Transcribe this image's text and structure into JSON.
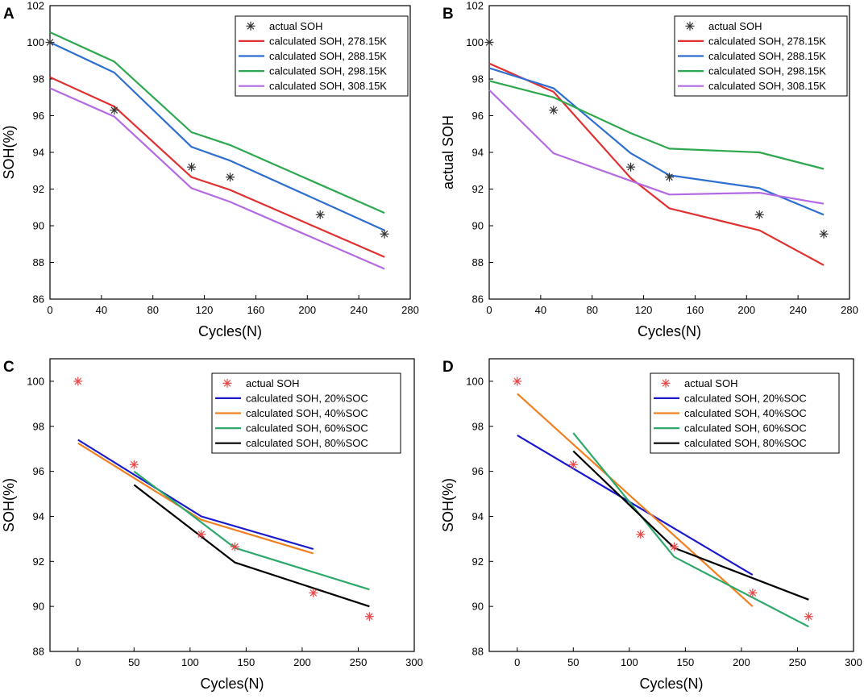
{
  "chart_data": [
    {
      "panel": "A",
      "type": "line",
      "xlabel": "Cycles(N)",
      "ylabel": "SOH(%)",
      "xlim": [
        0,
        280
      ],
      "ylim": [
        86,
        102
      ],
      "xticks": [
        0,
        40,
        80,
        120,
        160,
        200,
        240,
        280
      ],
      "yticks": [
        86,
        88,
        90,
        92,
        94,
        96,
        98,
        100,
        102
      ],
      "legend": "top-right",
      "actual": {
        "name": "actual SOH",
        "color": "#333333",
        "x": [
          0,
          50,
          110,
          140,
          210,
          260
        ],
        "y": [
          100,
          96.3,
          93.2,
          92.65,
          90.6,
          89.55
        ]
      },
      "series": [
        {
          "name": "calculated SOH, 278.15K",
          "color": "#e03030",
          "x": [
            0,
            50,
            110,
            140,
            260
          ],
          "y": [
            98.1,
            96.5,
            92.65,
            91.95,
            88.3
          ]
        },
        {
          "name": "calculated SOH, 288.15K",
          "color": "#2f6fcf",
          "x": [
            0,
            50,
            110,
            140,
            260
          ],
          "y": [
            100.0,
            98.35,
            94.3,
            93.55,
            89.75
          ]
        },
        {
          "name": "calculated SOH, 298.15K",
          "color": "#2ea84f",
          "x": [
            0,
            50,
            110,
            140,
            260
          ],
          "y": [
            100.55,
            98.95,
            95.1,
            94.4,
            90.7
          ]
        },
        {
          "name": "calculated SOH, 308.15K",
          "color": "#b36ae2",
          "x": [
            0,
            50,
            110,
            140,
            260
          ],
          "y": [
            97.5,
            95.95,
            92.05,
            91.3,
            87.65
          ]
        }
      ]
    },
    {
      "panel": "B",
      "type": "line",
      "xlabel": "Cycles(N)",
      "ylabel": "actual SOH",
      "xlim": [
        0,
        280
      ],
      "ylim": [
        86,
        102
      ],
      "xticks": [
        0,
        40,
        80,
        120,
        160,
        200,
        240,
        280
      ],
      "yticks": [
        86,
        88,
        90,
        92,
        94,
        96,
        98,
        100,
        102
      ],
      "legend": "top-right",
      "actual": {
        "name": "actual SOH",
        "color": "#333333",
        "x": [
          0,
          50,
          110,
          140,
          210,
          260
        ],
        "y": [
          100,
          96.3,
          93.2,
          92.65,
          90.6,
          89.55
        ]
      },
      "series": [
        {
          "name": "calculated SOH, 278.15K",
          "color": "#e03030",
          "x": [
            0,
            50,
            110,
            140,
            210,
            260
          ],
          "y": [
            98.85,
            97.3,
            92.6,
            90.95,
            89.75,
            87.85
          ]
        },
        {
          "name": "calculated SOH, 288.15K",
          "color": "#2f6fcf",
          "x": [
            0,
            50,
            110,
            140,
            210,
            260
          ],
          "y": [
            98.6,
            97.5,
            93.95,
            92.75,
            92.05,
            90.6
          ]
        },
        {
          "name": "calculated SOH, 298.15K",
          "color": "#2ea84f",
          "x": [
            0,
            50,
            110,
            140,
            210,
            260
          ],
          "y": [
            97.9,
            97.0,
            95.05,
            94.2,
            94.0,
            93.1
          ]
        },
        {
          "name": "calculated SOH, 308.15K",
          "color": "#b36ae2",
          "x": [
            0,
            50,
            110,
            140,
            210,
            260
          ],
          "y": [
            97.4,
            93.95,
            92.45,
            91.7,
            91.8,
            91.2
          ]
        }
      ]
    },
    {
      "panel": "C",
      "type": "line",
      "xlabel": "Cycles(N)",
      "ylabel": "SOH(%)",
      "xlim": [
        -25,
        300
      ],
      "ylim": [
        88,
        101
      ],
      "xticks": [
        0,
        50,
        100,
        150,
        200,
        250,
        300
      ],
      "yticks": [
        88,
        90,
        92,
        94,
        96,
        98,
        100
      ],
      "legend": "top-right",
      "actual": {
        "name": "actual SOH",
        "color": "#e84848",
        "x": [
          0,
          50,
          110,
          140,
          210,
          260
        ],
        "y": [
          100,
          96.3,
          93.2,
          92.65,
          90.6,
          89.55
        ]
      },
      "series": [
        {
          "name": "calculated SOH, 20%SOC",
          "color": "#1a1acc",
          "x": [
            0,
            110,
            210
          ],
          "y": [
            97.4,
            94.0,
            92.55
          ]
        },
        {
          "name": "calculated SOH, 40%SOC",
          "color": "#f08020",
          "x": [
            0,
            110,
            210
          ],
          "y": [
            97.25,
            93.85,
            92.35
          ]
        },
        {
          "name": "calculated SOH, 60%SOC",
          "color": "#2ea86a",
          "x": [
            50,
            140,
            260
          ],
          "y": [
            96.0,
            92.6,
            90.75
          ]
        },
        {
          "name": "calculated SOH, 80%SOC",
          "color": "#000000",
          "x": [
            50,
            140,
            260
          ],
          "y": [
            95.4,
            91.95,
            90.0
          ]
        }
      ]
    },
    {
      "panel": "D",
      "type": "line",
      "xlabel": "Cycles(N)",
      "ylabel": "SOH(%)",
      "xlim": [
        -25,
        300
      ],
      "ylim": [
        88,
        101
      ],
      "xticks": [
        0,
        50,
        100,
        150,
        200,
        250,
        300
      ],
      "yticks": [
        88,
        90,
        92,
        94,
        96,
        98,
        100
      ],
      "legend": "top-right",
      "actual": {
        "name": "actual SOH",
        "color": "#e84848",
        "x": [
          0,
          50,
          110,
          140,
          210,
          260
        ],
        "y": [
          100,
          96.3,
          93.2,
          92.65,
          90.6,
          89.55
        ]
      },
      "series": [
        {
          "name": "calculated SOH, 20%SOC",
          "color": "#1a1acc",
          "x": [
            0,
            210
          ],
          "y": [
            97.6,
            91.4
          ]
        },
        {
          "name": "calculated SOH, 40%SOC",
          "color": "#f08020",
          "x": [
            0,
            210
          ],
          "y": [
            99.45,
            90.0
          ]
        },
        {
          "name": "calculated SOH, 60%SOC",
          "color": "#2ea86a",
          "x": [
            50,
            140,
            260
          ],
          "y": [
            97.7,
            92.2,
            89.1
          ]
        },
        {
          "name": "calculated SOH, 80%SOC",
          "color": "#000000",
          "x": [
            50,
            140,
            260
          ],
          "y": [
            96.9,
            92.6,
            90.3
          ]
        }
      ]
    }
  ]
}
